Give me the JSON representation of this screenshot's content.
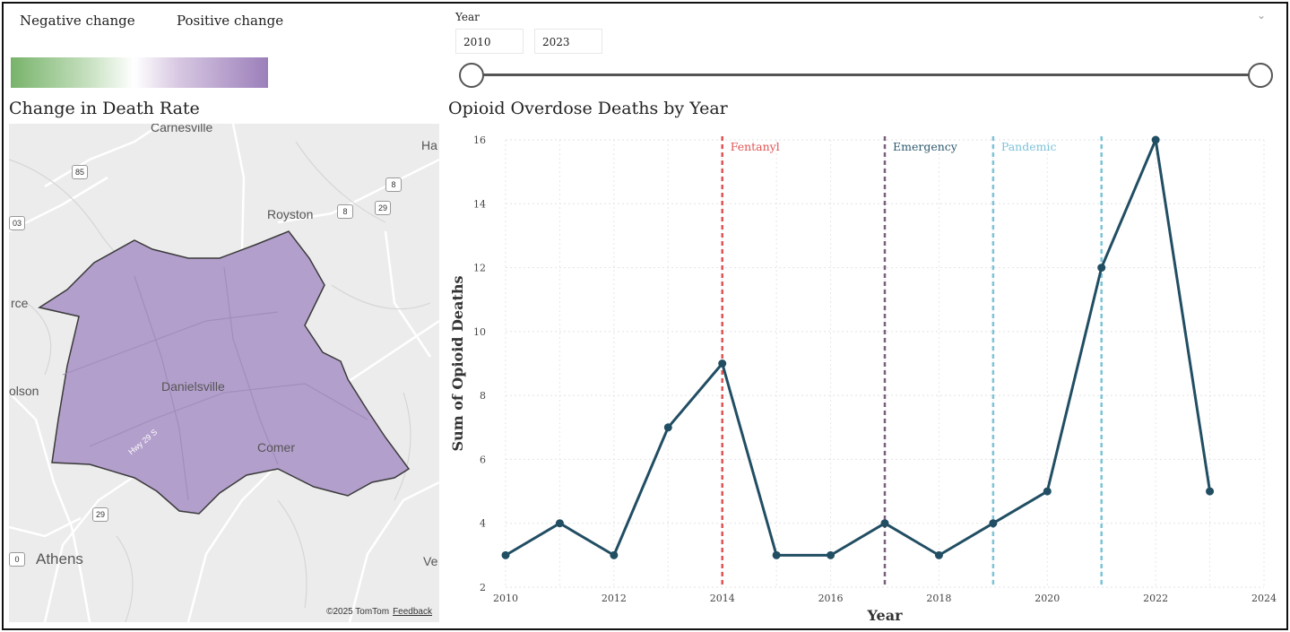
{
  "legend": {
    "negative_label": "Negative change",
    "positive_label": "Positive change",
    "negative_color": "#78b36b",
    "positive_color": "#9b7fba"
  },
  "map_panel": {
    "title": "Change in Death Rate",
    "places": {
      "carnesville": "Carnesville",
      "royston": "Royston",
      "danielsville": "Danielsville",
      "comer": "Comer",
      "athens": "Athens",
      "nicholson": "olson",
      "commerce": "rce",
      "hartwell": "Ha",
      "ve": "Ve",
      "highway": "Hwy 29 S"
    },
    "shields": {
      "i85": "85",
      "s8a": "8",
      "s8b": "8",
      "s29a": "29",
      "s29b": "29",
      "s03": "03",
      "s0": "0"
    },
    "county_color": "#b39fcc",
    "copyright": "©2025 TomTom",
    "feedback": "Feedback"
  },
  "year_filter": {
    "label": "Year",
    "start": "2010",
    "end": "2023"
  },
  "chart_data": {
    "type": "line",
    "title": "Opioid Overdose Deaths by Year",
    "xlabel": "Year",
    "ylabel": "Sum of Opioid Deaths",
    "x": [
      2010,
      2011,
      2012,
      2013,
      2014,
      2015,
      2016,
      2017,
      2018,
      2019,
      2020,
      2021,
      2022,
      2023
    ],
    "series": [
      {
        "name": "Sum of Opioid Deaths",
        "color": "#214e63",
        "values": [
          3,
          4,
          3,
          7,
          9,
          3,
          3,
          4,
          3,
          4,
          5,
          12,
          16,
          5
        ]
      }
    ],
    "xlim": [
      2010,
      2024
    ],
    "ylim": [
      2,
      16
    ],
    "xticks": [
      2010,
      2012,
      2014,
      2016,
      2018,
      2020,
      2022,
      2024
    ],
    "yticks": [
      2,
      4,
      6,
      8,
      10,
      12,
      14,
      16
    ],
    "annotations": [
      {
        "label": "Fentanyl",
        "x": 2014,
        "color": "#e05353"
      },
      {
        "label": "Emergency",
        "x": 2017,
        "color": "#7a5f7a",
        "text_color": "#2e5a6e"
      },
      {
        "label": "Pandemic",
        "x": 2019,
        "color": "#7cc3d8"
      },
      {
        "label": "",
        "x": 2021,
        "color": "#7cc3d8"
      }
    ]
  }
}
